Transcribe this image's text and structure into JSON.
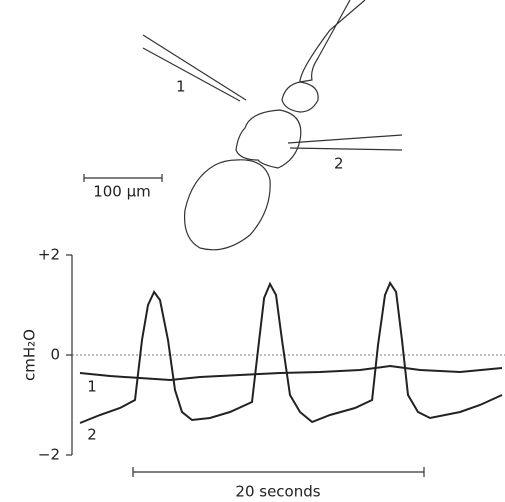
{
  "diagram": {
    "electrode_1_label": "1",
    "electrode_2_label": "2",
    "scale_label": "100 μm"
  },
  "chart_data": {
    "type": "line",
    "y_label": "cmH₂O",
    "scale_bar_label": "20 seconds",
    "xlim": [
      0,
      29
    ],
    "ylim": [
      -2,
      2
    ],
    "yticks": [
      {
        "value": 2,
        "label": "+2"
      },
      0,
      {
        "value": -2,
        "label": "−2"
      }
    ],
    "zero_line": true,
    "series": [
      {
        "name": "1",
        "color": "#222",
        "x": [
          0,
          2.06,
          4.12,
          6.19,
          8.25,
          10.99,
          13.75,
          16.49,
          19.24,
          21.31,
          23.37,
          26.12,
          29.0
        ],
        "values": [
          -0.36,
          -0.42,
          -0.46,
          -0.5,
          -0.44,
          -0.4,
          -0.36,
          -0.34,
          -0.3,
          -0.22,
          -0.3,
          -0.34,
          -0.26
        ]
      },
      {
        "name": "2",
        "color": "#222",
        "x": [
          0,
          1.37,
          2.75,
          3.78,
          4.26,
          4.67,
          5.09,
          5.5,
          6.05,
          6.53,
          7.01,
          7.7,
          8.93,
          10.31,
          11.82,
          12.23,
          12.65,
          13.06,
          13.47,
          13.88,
          14.43,
          15.12,
          15.95,
          17.18,
          18.9,
          20.07,
          20.48,
          20.96,
          21.31,
          21.72,
          22.13,
          22.54,
          23.23,
          24.05,
          26.12,
          27.49,
          29.0
        ],
        "values": [
          -1.36,
          -1.2,
          -1.06,
          -0.9,
          0.3,
          1.0,
          1.26,
          1.1,
          0.3,
          -0.7,
          -1.14,
          -1.3,
          -1.26,
          -1.14,
          -0.94,
          0.1,
          1.14,
          1.42,
          1.2,
          0.3,
          -0.8,
          -1.14,
          -1.34,
          -1.2,
          -1.06,
          -0.9,
          0.2,
          1.2,
          1.44,
          1.26,
          0.3,
          -0.8,
          -1.14,
          -1.26,
          -1.14,
          -1.0,
          -0.8
        ]
      }
    ]
  }
}
